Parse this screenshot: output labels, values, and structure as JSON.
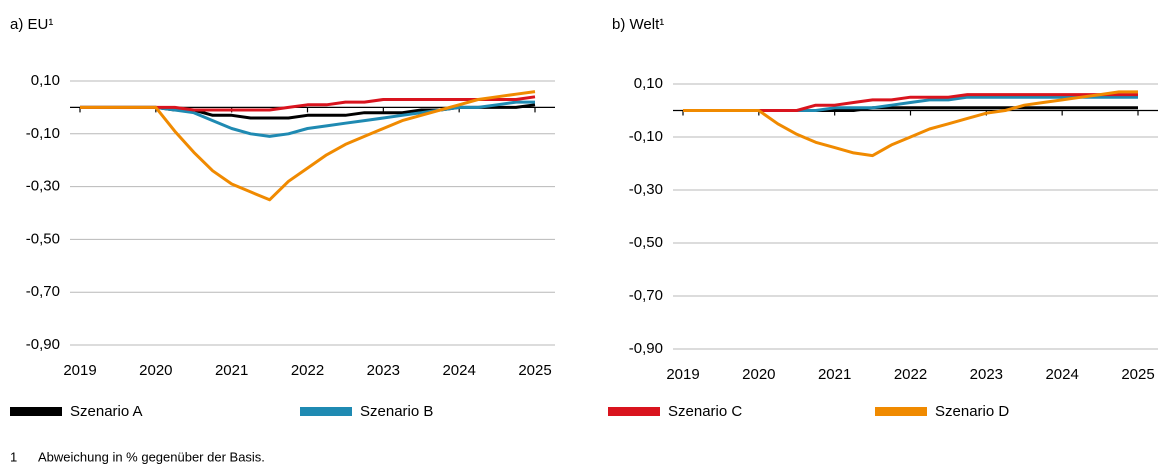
{
  "chart_data": [
    {
      "type": "line",
      "title": "a) EU¹",
      "x": [
        2019,
        2019.25,
        2019.5,
        2019.75,
        2020,
        2020.25,
        2020.5,
        2020.75,
        2021,
        2021.25,
        2021.5,
        2021.75,
        2022,
        2022.25,
        2022.5,
        2022.75,
        2023,
        2023.25,
        2023.5,
        2023.75,
        2024,
        2024.25,
        2024.5,
        2024.75,
        2025
      ],
      "xlim": [
        2019,
        2025
      ],
      "xticks": [
        2019,
        2020,
        2021,
        2022,
        2023,
        2024,
        2025
      ],
      "ylim": [
        -0.9,
        0.1
      ],
      "yticks": [
        {
          "value": 0.1,
          "label": "0,10"
        },
        {
          "value": -0.1,
          "label": "-0,10"
        },
        {
          "value": -0.3,
          "label": "-0,30"
        },
        {
          "value": -0.5,
          "label": "-0,50"
        },
        {
          "value": -0.7,
          "label": "-0,70"
        },
        {
          "value": -0.9,
          "label": "-0,90"
        }
      ],
      "grid": true,
      "series": [
        {
          "name": "Szenario A",
          "color": "#000000",
          "values": [
            0,
            0,
            0,
            0,
            0,
            -0.01,
            -0.01,
            -0.03,
            -0.03,
            -0.04,
            -0.04,
            -0.04,
            -0.03,
            -0.03,
            -0.03,
            -0.02,
            -0.02,
            -0.02,
            -0.01,
            -0.01,
            0,
            0,
            0,
            0,
            0.01
          ]
        },
        {
          "name": "Szenario B",
          "color": "#1f8ab2",
          "values": [
            0,
            0,
            0,
            0,
            0,
            -0.01,
            -0.02,
            -0.05,
            -0.08,
            -0.1,
            -0.11,
            -0.1,
            -0.08,
            -0.07,
            -0.06,
            -0.05,
            -0.04,
            -0.03,
            -0.02,
            -0.01,
            0,
            0,
            0.01,
            0.02,
            0.02
          ]
        },
        {
          "name": "Szenario C",
          "color": "#d9141e",
          "values": [
            0,
            0,
            0,
            0,
            0,
            0,
            -0.01,
            -0.01,
            -0.01,
            -0.01,
            -0.01,
            0,
            0.01,
            0.01,
            0.02,
            0.02,
            0.03,
            0.03,
            0.03,
            0.03,
            0.03,
            0.03,
            0.03,
            0.03,
            0.04
          ]
        },
        {
          "name": "Szenario D",
          "color": "#f08a00",
          "values": [
            0,
            0,
            0,
            0,
            0,
            -0.09,
            -0.17,
            -0.24,
            -0.29,
            -0.32,
            -0.35,
            -0.28,
            -0.23,
            -0.18,
            -0.14,
            -0.11,
            -0.08,
            -0.05,
            -0.03,
            -0.01,
            0.01,
            0.03,
            0.04,
            0.05,
            0.06
          ]
        }
      ]
    },
    {
      "type": "line",
      "title": "b) Welt¹",
      "x": [
        2019,
        2019.25,
        2019.5,
        2019.75,
        2020,
        2020.25,
        2020.5,
        2020.75,
        2021,
        2021.25,
        2021.5,
        2021.75,
        2022,
        2022.25,
        2022.5,
        2022.75,
        2023,
        2023.25,
        2023.5,
        2023.75,
        2024,
        2024.25,
        2024.5,
        2024.75,
        2025
      ],
      "xlim": [
        2019,
        2025
      ],
      "xticks": [
        2019,
        2020,
        2021,
        2022,
        2023,
        2024,
        2025
      ],
      "ylim": [
        -0.9,
        0.1
      ],
      "yticks": [
        {
          "value": 0.1,
          "label": "0,10"
        },
        {
          "value": -0.1,
          "label": "-0,10"
        },
        {
          "value": -0.3,
          "label": "-0,30"
        },
        {
          "value": -0.5,
          "label": "-0,50"
        },
        {
          "value": -0.7,
          "label": "-0,70"
        },
        {
          "value": -0.9,
          "label": "-0,90"
        }
      ],
      "grid": true,
      "series": [
        {
          "color": "#000000",
          "values": [
            0,
            0,
            0,
            0,
            0,
            0,
            0,
            0,
            0,
            0,
            0.01,
            0.01,
            0.01,
            0.01,
            0.01,
            0.01,
            0.01,
            0.01,
            0.01,
            0.01,
            0.01,
            0.01,
            0.01,
            0.01,
            0.01
          ]
        },
        {
          "color": "#1f8ab2",
          "values": [
            0,
            0,
            0,
            0,
            0,
            0,
            0,
            0,
            0.01,
            0.01,
            0.01,
            0.02,
            0.03,
            0.04,
            0.04,
            0.05,
            0.05,
            0.05,
            0.05,
            0.05,
            0.05,
            0.05,
            0.05,
            0.05,
            0.05
          ]
        },
        {
          "color": "#d9141e",
          "values": [
            0,
            0,
            0,
            0,
            0,
            0,
            0,
            0.02,
            0.02,
            0.03,
            0.04,
            0.04,
            0.05,
            0.05,
            0.05,
            0.06,
            0.06,
            0.06,
            0.06,
            0.06,
            0.06,
            0.06,
            0.06,
            0.06,
            0.06
          ]
        },
        {
          "color": "#f08a00",
          "values": [
            0,
            0,
            0,
            0,
            0,
            -0.05,
            -0.09,
            -0.12,
            -0.14,
            -0.16,
            -0.17,
            -0.13,
            -0.1,
            -0.07,
            -0.05,
            -0.03,
            -0.01,
            0,
            0.02,
            0.03,
            0.04,
            0.05,
            0.06,
            0.07,
            0.07
          ]
        }
      ]
    }
  ],
  "footnote": {
    "marker": "1",
    "text": "Abweichung in % gegenüber der Basis."
  }
}
